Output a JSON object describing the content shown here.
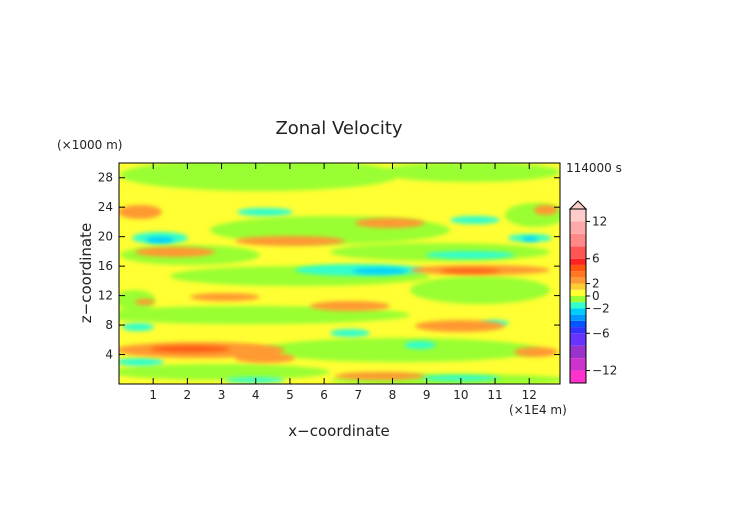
{
  "chart_data": {
    "type": "heatmap",
    "title": "Zonal Velocity",
    "xlabel": "x−coordinate",
    "ylabel": "z−coordinate",
    "x_unit": "(×1E4 m)",
    "y_unit": "(×1000 m)",
    "time_label": "114000 s",
    "xlim": [
      0,
      12.9
    ],
    "ylim": [
      0,
      30
    ],
    "x_ticks": [
      "1",
      "2",
      "3",
      "4",
      "5",
      "6",
      "7",
      "8",
      "9",
      "10",
      "11",
      "12"
    ],
    "y_ticks": [
      "4",
      "8",
      "12",
      "16",
      "20",
      "24",
      "28"
    ],
    "colorbar": {
      "tick_labels": [
        "12",
        "6",
        "2",
        "0",
        "−2",
        "−6",
        "−12"
      ],
      "levels": [
        -14,
        -12,
        -10,
        -8,
        -6,
        -5,
        -4,
        -3,
        -2,
        -1,
        0,
        1,
        2,
        3,
        4,
        5,
        6,
        8,
        10,
        12,
        14
      ],
      "colors": [
        "#ff33cc",
        "#cc33cc",
        "#9933cc",
        "#6633ff",
        "#3333ff",
        "#0055ff",
        "#0099ff",
        "#00ccff",
        "#33ffcc",
        "#99ff33",
        "#ffff33",
        "#ffcc33",
        "#ff9933",
        "#ff7722",
        "#ff5511",
        "#ff2222",
        "#ff5555",
        "#ff8888",
        "#ffaaaa",
        "#ffcccc"
      ],
      "extend": "max"
    },
    "grid": false
  }
}
